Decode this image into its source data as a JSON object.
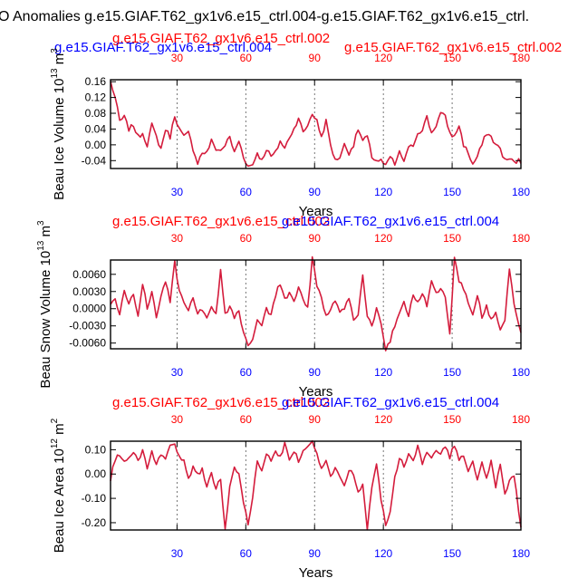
{
  "main_title": "O Anomalies g.e15.GIAF.T62_gx1v6.e15_ctrl.004-g.e15.GIAF.T62_gx1v6.e15_ctrl.",
  "colors": {
    "blue": "#0000ff",
    "red": "#ff0000",
    "line": "#d41c3c"
  },
  "chart_data": [
    {
      "type": "line",
      "panel": "beau-ice-volume",
      "case_blue": "g.e15.GIAF.T62_gx1v6.e15_ctrl.004",
      "case_red_a": "g.e15.GIAF.T62_gx1v6.e15_ctrl.002",
      "case_red_b": "g.e15.GIAF.T62_gx1v6.e15_ctrl.002",
      "ylabel": "Beau Ice Volume 10",
      "ylabel_exp": "13",
      "ylabel_unit": "m",
      "ylabel_unit_exp": "3",
      "xlabel": "Years",
      "xlim": [
        1,
        180
      ],
      "ylim": [
        -0.06,
        0.165
      ],
      "yticks": [
        -0.04,
        0.0,
        0.04,
        0.08,
        0.12,
        0.16
      ],
      "ytick_labels": [
        "-0.04",
        "0.00",
        "0.04",
        "0.08",
        "0.12",
        "0.16"
      ],
      "xticks": [
        30,
        60,
        90,
        120,
        150,
        180
      ],
      "xtick_labels": [
        "30",
        "60",
        "90",
        "120",
        "150",
        "180"
      ],
      "knots": [
        [
          1,
          0.16
        ],
        [
          3,
          0.12
        ],
        [
          5,
          0.06
        ],
        [
          7,
          0.07
        ],
        [
          9,
          0.04
        ],
        [
          11,
          0.05
        ],
        [
          13,
          0.02
        ],
        [
          15,
          0.03
        ],
        [
          17,
          0.0
        ],
        [
          19,
          0.05
        ],
        [
          21,
          0.02
        ],
        [
          23,
          -0.01
        ],
        [
          25,
          0.04
        ],
        [
          27,
          0.02
        ],
        [
          29,
          0.075
        ],
        [
          31,
          0.04
        ],
        [
          33,
          0.02
        ],
        [
          35,
          0.03
        ],
        [
          37,
          -0.01
        ],
        [
          39,
          -0.045
        ],
        [
          41,
          -0.02
        ],
        [
          43,
          -0.02
        ],
        [
          45,
          0.01
        ],
        [
          47,
          -0.01
        ],
        [
          49,
          -0.015
        ],
        [
          51,
          0.0
        ],
        [
          53,
          0.02
        ],
        [
          55,
          -0.02
        ],
        [
          57,
          0.01
        ],
        [
          59,
          -0.03
        ],
        [
          61,
          -0.055
        ],
        [
          63,
          -0.05
        ],
        [
          65,
          -0.02
        ],
        [
          67,
          -0.04
        ],
        [
          69,
          -0.01
        ],
        [
          71,
          -0.03
        ],
        [
          73,
          -0.02
        ],
        [
          75,
          0.01
        ],
        [
          77,
          -0.01
        ],
        [
          79,
          0.02
        ],
        [
          81,
          0.04
        ],
        [
          83,
          0.07
        ],
        [
          85,
          0.03
        ],
        [
          87,
          0.05
        ],
        [
          89,
          0.08
        ],
        [
          91,
          0.06
        ],
        [
          93,
          0.02
        ],
        [
          95,
          0.06
        ],
        [
          97,
          0.0
        ],
        [
          99,
          -0.04
        ],
        [
          101,
          -0.03
        ],
        [
          103,
          0.0
        ],
        [
          105,
          -0.02
        ],
        [
          107,
          0.0
        ],
        [
          109,
          0.04
        ],
        [
          111,
          0.01
        ],
        [
          113,
          0.02
        ],
        [
          115,
          -0.03
        ],
        [
          117,
          -0.04
        ],
        [
          119,
          -0.04
        ],
        [
          121,
          -0.055
        ],
        [
          123,
          -0.03
        ],
        [
          125,
          -0.05
        ],
        [
          127,
          -0.02
        ],
        [
          129,
          -0.04
        ],
        [
          131,
          -0.01
        ],
        [
          133,
          0.0
        ],
        [
          135,
          0.03
        ],
        [
          137,
          0.04
        ],
        [
          139,
          0.07
        ],
        [
          141,
          0.03
        ],
        [
          143,
          0.05
        ],
        [
          145,
          0.08
        ],
        [
          147,
          0.07
        ],
        [
          149,
          0.03
        ],
        [
          151,
          0.02
        ],
        [
          153,
          0.05
        ],
        [
          155,
          0.0
        ],
        [
          157,
          -0.02
        ],
        [
          159,
          -0.05
        ],
        [
          161,
          -0.03
        ],
        [
          163,
          0.0
        ],
        [
          165,
          0.03
        ],
        [
          167,
          0.02
        ],
        [
          169,
          0.0
        ],
        [
          171,
          -0.01
        ],
        [
          173,
          -0.04
        ],
        [
          175,
          -0.035
        ],
        [
          177,
          -0.045
        ],
        [
          179,
          -0.04
        ],
        [
          180,
          -0.045
        ]
      ],
      "seed": 7,
      "noise": 0.012
    },
    {
      "type": "line",
      "panel": "beau-snow-volume",
      "case_red": "g.e15.GIAF.T62_gx1v6.e15_ctrl.002",
      "case_blue": "g.e15.GIAF.T62_gx1v6.e15_ctrl.004",
      "ylabel": "Beau Snow Volume 10",
      "ylabel_exp": "13",
      "ylabel_unit": "m",
      "ylabel_unit_exp": "3",
      "xlabel": "Years",
      "xlim": [
        1,
        180
      ],
      "ylim": [
        -0.007,
        0.0085
      ],
      "yticks": [
        -0.006,
        -0.003,
        0.0,
        0.003,
        0.006
      ],
      "ytick_labels": [
        "-0.0060",
        "-0.0030",
        "0.0000",
        "0.0030",
        "0.0060"
      ],
      "xticks": [
        30,
        60,
        90,
        120,
        150,
        180
      ],
      "xtick_labels": [
        "30",
        "60",
        "90",
        "120",
        "150",
        "180"
      ],
      "knots": [
        [
          1,
          0.0005
        ],
        [
          3,
          0.002
        ],
        [
          5,
          -0.001
        ],
        [
          7,
          0.003
        ],
        [
          9,
          0.001
        ],
        [
          11,
          0.0025
        ],
        [
          13,
          -0.001
        ],
        [
          15,
          0.0045
        ],
        [
          17,
          0.0
        ],
        [
          19,
          0.003
        ],
        [
          21,
          -0.0015
        ],
        [
          23,
          0.002
        ],
        [
          25,
          0.005
        ],
        [
          27,
          0.001
        ],
        [
          29,
          0.008
        ],
        [
          31,
          0.003
        ],
        [
          33,
          0.001
        ],
        [
          35,
          -0.0005
        ],
        [
          37,
          0.002
        ],
        [
          39,
          -0.001
        ],
        [
          41,
          0.0
        ],
        [
          43,
          -0.002
        ],
        [
          45,
          0.0
        ],
        [
          47,
          -0.001
        ],
        [
          49,
          0.0065
        ],
        [
          51,
          -0.001
        ],
        [
          53,
          0.0005
        ],
        [
          55,
          -0.0015
        ],
        [
          57,
          -0.0005
        ],
        [
          59,
          -0.004
        ],
        [
          61,
          -0.0068
        ],
        [
          63,
          -0.005
        ],
        [
          65,
          -0.002
        ],
        [
          67,
          -0.003
        ],
        [
          69,
          0.0
        ],
        [
          71,
          -0.001
        ],
        [
          73,
          0.0025
        ],
        [
          75,
          0.0045
        ],
        [
          77,
          0.0015
        ],
        [
          79,
          0.003
        ],
        [
          81,
          0.001
        ],
        [
          83,
          0.004
        ],
        [
          85,
          0.0015
        ],
        [
          87,
          0.0
        ],
        [
          89,
          0.009
        ],
        [
          91,
          0.004
        ],
        [
          93,
          0.002
        ],
        [
          95,
          -0.0015
        ],
        [
          97,
          0.0
        ],
        [
          99,
          0.0015
        ],
        [
          101,
          -0.001
        ],
        [
          103,
          0.0
        ],
        [
          105,
          0.002
        ],
        [
          107,
          -0.002
        ],
        [
          109,
          -0.001
        ],
        [
          111,
          0.006
        ],
        [
          113,
          -0.0015
        ],
        [
          115,
          -0.003
        ],
        [
          117,
          0.0
        ],
        [
          119,
          -0.003
        ],
        [
          121,
          -0.007
        ],
        [
          123,
          -0.0055
        ],
        [
          125,
          -0.003
        ],
        [
          127,
          -0.001
        ],
        [
          129,
          0.001
        ],
        [
          131,
          -0.001
        ],
        [
          133,
          0.0025
        ],
        [
          135,
          0.001
        ],
        [
          137,
          0.003
        ],
        [
          139,
          0.0005
        ],
        [
          141,
          0.005
        ],
        [
          143,
          0.0025
        ],
        [
          145,
          0.0035
        ],
        [
          147,
          0.002
        ],
        [
          149,
          -0.0045
        ],
        [
          151,
          0.0088
        ],
        [
          153,
          0.005
        ],
        [
          155,
          0.0035
        ],
        [
          157,
          0.001
        ],
        [
          159,
          -0.001
        ],
        [
          161,
          0.0025
        ],
        [
          163,
          -0.0015
        ],
        [
          165,
          0.0005
        ],
        [
          167,
          -0.002
        ],
        [
          169,
          -0.0005
        ],
        [
          171,
          -0.004
        ],
        [
          173,
          -0.002
        ],
        [
          175,
          0.007
        ],
        [
          177,
          0.001
        ],
        [
          179,
          -0.003
        ],
        [
          180,
          -0.004
        ]
      ],
      "seed": 23,
      "noise": 0.0008
    },
    {
      "type": "line",
      "panel": "beau-ice-area",
      "case_red": "g.e15.GIAF.T62_gx1v6.e15_ctrl.002",
      "case_blue": "g.e15.GIAF.T62_gx1v6.e15_ctrl.004",
      "ylabel": "Beau Ice Area 10",
      "ylabel_exp": "12",
      "ylabel_unit": "m",
      "ylabel_unit_exp": "2",
      "xlabel": "Years",
      "xlim": [
        1,
        180
      ],
      "ylim": [
        -0.23,
        0.135
      ],
      "yticks": [
        -0.2,
        -0.1,
        0.0,
        0.1
      ],
      "ytick_labels": [
        "-0.20",
        "-0.10",
        "0.00",
        "0.10"
      ],
      "xticks": [
        30,
        60,
        90,
        120,
        150,
        180
      ],
      "xtick_labels": [
        "30",
        "60",
        "90",
        "120",
        "150",
        "180"
      ],
      "knots": [
        [
          1,
          -0.02
        ],
        [
          3,
          0.06
        ],
        [
          5,
          0.08
        ],
        [
          7,
          0.05
        ],
        [
          9,
          0.07
        ],
        [
          11,
          0.08
        ],
        [
          13,
          0.06
        ],
        [
          15,
          0.09
        ],
        [
          17,
          0.03
        ],
        [
          19,
          0.1
        ],
        [
          21,
          0.04
        ],
        [
          23,
          0.08
        ],
        [
          25,
          0.06
        ],
        [
          27,
          0.11
        ],
        [
          29,
          0.13
        ],
        [
          31,
          0.07
        ],
        [
          33,
          0.05
        ],
        [
          35,
          -0.02
        ],
        [
          37,
          0.03
        ],
        [
          39,
          0.0
        ],
        [
          41,
          0.02
        ],
        [
          43,
          -0.05
        ],
        [
          45,
          0.0
        ],
        [
          47,
          -0.06
        ],
        [
          49,
          -0.02
        ],
        [
          51,
          -0.23
        ],
        [
          53,
          -0.05
        ],
        [
          55,
          0.03
        ],
        [
          57,
          0.0
        ],
        [
          59,
          -0.12
        ],
        [
          61,
          -0.2
        ],
        [
          63,
          -0.1
        ],
        [
          65,
          0.05
        ],
        [
          67,
          0.02
        ],
        [
          69,
          0.08
        ],
        [
          71,
          0.05
        ],
        [
          73,
          0.1
        ],
        [
          75,
          0.07
        ],
        [
          77,
          0.12
        ],
        [
          79,
          0.06
        ],
        [
          81,
          0.1
        ],
        [
          83,
          0.05
        ],
        [
          85,
          0.09
        ],
        [
          87,
          0.11
        ],
        [
          89,
          0.13
        ],
        [
          91,
          0.08
        ],
        [
          93,
          0.02
        ],
        [
          95,
          0.06
        ],
        [
          97,
          -0.01
        ],
        [
          99,
          0.03
        ],
        [
          101,
          -0.02
        ],
        [
          103,
          -0.05
        ],
        [
          105,
          0.02
        ],
        [
          107,
          0.0
        ],
        [
          109,
          -0.08
        ],
        [
          111,
          -0.04
        ],
        [
          113,
          -0.22
        ],
        [
          115,
          -0.05
        ],
        [
          117,
          0.04
        ],
        [
          119,
          -0.1
        ],
        [
          121,
          -0.21
        ],
        [
          123,
          -0.15
        ],
        [
          125,
          -0.02
        ],
        [
          127,
          0.07
        ],
        [
          129,
          0.03
        ],
        [
          131,
          0.09
        ],
        [
          133,
          0.06
        ],
        [
          135,
          0.11
        ],
        [
          137,
          0.04
        ],
        [
          139,
          0.09
        ],
        [
          141,
          0.06
        ],
        [
          143,
          0.1
        ],
        [
          145,
          0.08
        ],
        [
          147,
          0.11
        ],
        [
          149,
          0.07
        ],
        [
          151,
          0.12
        ],
        [
          153,
          0.05
        ],
        [
          155,
          0.08
        ],
        [
          157,
          0.02
        ],
        [
          159,
          0.06
        ],
        [
          161,
          -0.02
        ],
        [
          163,
          0.04
        ],
        [
          165,
          -0.01
        ],
        [
          167,
          0.05
        ],
        [
          169,
          -0.05
        ],
        [
          171,
          0.03
        ],
        [
          173,
          -0.08
        ],
        [
          175,
          -0.03
        ],
        [
          177,
          0.0
        ],
        [
          179,
          -0.15
        ],
        [
          180,
          -0.22
        ]
      ],
      "seed": 41,
      "noise": 0.02
    }
  ]
}
